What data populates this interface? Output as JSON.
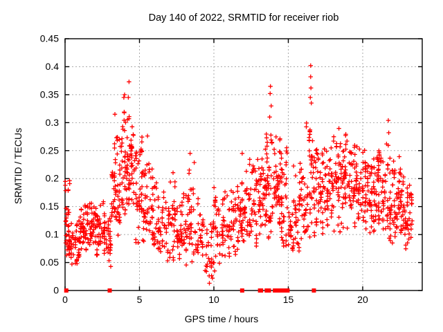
{
  "page": {
    "background": "#ffffff"
  },
  "chart_data": {
    "type": "scatter",
    "title": "Day 140 of 2022, SRMTID for receiver riob",
    "xlabel": "GPS time / hours",
    "ylabel": "SRMTID / TECUs",
    "xlim": [
      0,
      24
    ],
    "ylim": [
      0,
      0.45
    ],
    "xticks": [
      0,
      5,
      10,
      15,
      20
    ],
    "xtick_labels": [
      "0",
      "5",
      "10",
      "15",
      "20"
    ],
    "yticks": [
      0,
      0.05,
      0.1,
      0.15,
      0.2,
      0.25,
      0.3,
      0.35,
      0.4,
      0.45
    ],
    "ytick_labels": [
      "0",
      "0.05",
      "0.1",
      "0.15",
      "0.2",
      "0.25",
      "0.3",
      "0.35",
      "0.4",
      "0.45"
    ],
    "grid": true,
    "legend": "none",
    "series_name": "SRMTID",
    "marker": {
      "shape": "plus",
      "color": "#ff0000",
      "size": 7
    },
    "colors": {
      "series": "#ff0000",
      "grid": "#a9a9a9",
      "axis": "#000000",
      "background": "#ffffff"
    },
    "bands_format": [
      "hour_start",
      "hour_end",
      "y_min",
      "y_max",
      "y_mode",
      "count"
    ],
    "density_bands": [
      [
        0.0,
        0.35,
        0.04,
        0.2,
        0.09,
        30
      ],
      [
        0.35,
        1.0,
        0.04,
        0.15,
        0.08,
        34
      ],
      [
        1.0,
        1.6,
        0.06,
        0.16,
        0.12,
        34
      ],
      [
        1.6,
        2.1,
        0.06,
        0.17,
        0.13,
        30
      ],
      [
        2.1,
        2.6,
        0.05,
        0.185,
        0.11,
        28
      ],
      [
        2.6,
        3.1,
        0.04,
        0.14,
        0.08,
        26
      ],
      [
        3.1,
        3.6,
        0.07,
        0.32,
        0.14,
        34
      ],
      [
        3.6,
        4.1,
        0.09,
        0.35,
        0.17,
        34
      ],
      [
        4.1,
        4.7,
        0.1,
        0.36,
        0.21,
        40
      ],
      [
        4.7,
        5.2,
        0.08,
        0.3,
        0.17,
        34
      ],
      [
        5.2,
        5.7,
        0.07,
        0.29,
        0.13,
        30
      ],
      [
        5.7,
        6.2,
        0.06,
        0.22,
        0.11,
        28
      ],
      [
        6.2,
        7.0,
        0.05,
        0.18,
        0.1,
        36
      ],
      [
        7.0,
        7.6,
        0.05,
        0.22,
        0.11,
        30
      ],
      [
        7.6,
        8.2,
        0.04,
        0.19,
        0.1,
        30
      ],
      [
        8.2,
        8.7,
        0.04,
        0.25,
        0.11,
        26
      ],
      [
        8.7,
        9.3,
        0.03,
        0.17,
        0.09,
        24
      ],
      [
        9.3,
        9.9,
        0.01,
        0.12,
        0.06,
        20
      ],
      [
        9.9,
        10.5,
        0.04,
        0.2,
        0.1,
        26
      ],
      [
        10.5,
        11.1,
        0.05,
        0.19,
        0.1,
        28
      ],
      [
        11.1,
        11.7,
        0.05,
        0.22,
        0.11,
        30
      ],
      [
        11.7,
        12.3,
        0.05,
        0.23,
        0.12,
        32
      ],
      [
        12.3,
        12.9,
        0.07,
        0.25,
        0.14,
        32
      ],
      [
        12.9,
        13.5,
        0.08,
        0.27,
        0.16,
        34
      ],
      [
        13.5,
        14.0,
        0.07,
        0.32,
        0.16,
        34
      ],
      [
        14.0,
        14.5,
        0.08,
        0.31,
        0.18,
        34
      ],
      [
        14.5,
        15.1,
        0.05,
        0.27,
        0.13,
        32
      ],
      [
        15.1,
        15.7,
        0.05,
        0.24,
        0.11,
        28
      ],
      [
        15.7,
        16.2,
        0.06,
        0.26,
        0.13,
        28
      ],
      [
        16.2,
        16.8,
        0.07,
        0.33,
        0.18,
        34
      ],
      [
        16.8,
        17.4,
        0.09,
        0.31,
        0.18,
        36
      ],
      [
        17.4,
        18.0,
        0.1,
        0.29,
        0.17,
        36
      ],
      [
        18.0,
        18.6,
        0.1,
        0.31,
        0.18,
        36
      ],
      [
        18.6,
        19.2,
        0.1,
        0.3,
        0.19,
        36
      ],
      [
        19.2,
        19.8,
        0.11,
        0.28,
        0.18,
        36
      ],
      [
        19.8,
        20.4,
        0.1,
        0.27,
        0.17,
        36
      ],
      [
        20.4,
        21.0,
        0.08,
        0.26,
        0.16,
        36
      ],
      [
        21.0,
        21.6,
        0.08,
        0.26,
        0.16,
        36
      ],
      [
        21.6,
        22.2,
        0.07,
        0.3,
        0.15,
        36
      ],
      [
        22.2,
        22.8,
        0.08,
        0.24,
        0.15,
        36
      ],
      [
        22.8,
        23.35,
        0.07,
        0.2,
        0.14,
        30
      ]
    ],
    "peak_points": [
      [
        4.3,
        0.373
      ],
      [
        4.25,
        0.345
      ],
      [
        4.0,
        0.35
      ],
      [
        3.95,
        0.345
      ],
      [
        3.35,
        0.315
      ],
      [
        13.8,
        0.365
      ],
      [
        13.78,
        0.352
      ],
      [
        13.85,
        0.33
      ],
      [
        13.75,
        0.31
      ],
      [
        16.5,
        0.402
      ],
      [
        16.5,
        0.382
      ],
      [
        16.52,
        0.362
      ],
      [
        16.48,
        0.345
      ],
      [
        16.55,
        0.335
      ],
      [
        21.72,
        0.304
      ],
      [
        21.75,
        0.282
      ],
      [
        21.6,
        0.262
      ],
      [
        8.4,
        0.245
      ],
      [
        11.9,
        0.245
      ],
      [
        0.02,
        0.195
      ],
      [
        0.02,
        0.188
      ],
      [
        9.7,
        0.013
      ],
      [
        9.9,
        0.022
      ],
      [
        10.05,
        0.035
      ]
    ],
    "zero_axis_points": [
      0.08,
      3.0,
      11.9,
      13.1,
      13.17,
      13.55,
      13.62,
      13.7,
      14.1,
      14.17,
      14.32,
      14.5,
      14.57,
      14.65,
      14.72,
      14.8,
      14.88,
      14.95,
      16.72
    ],
    "random_seed": 140
  }
}
